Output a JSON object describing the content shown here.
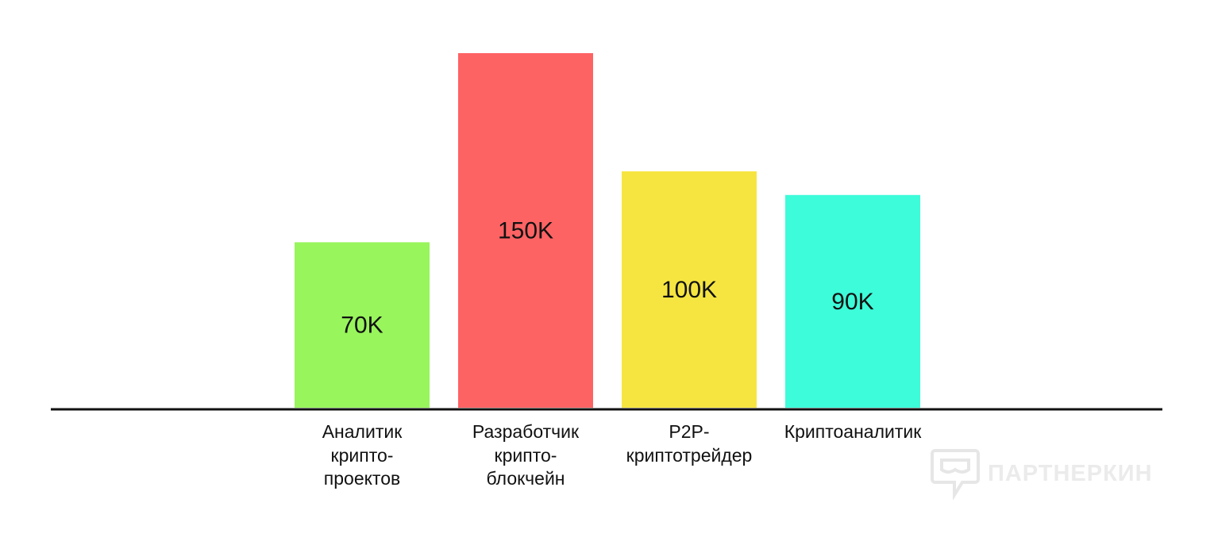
{
  "chart_data": {
    "type": "bar",
    "title": "",
    "xlabel": "",
    "ylabel": "",
    "ylim": [
      0,
      150
    ],
    "grid": false,
    "legend": "none",
    "categories": [
      "Аналитик\nкрипто-\nпроектов",
      "Разработчик\nкрипто-\nблокчейн",
      "P2P-\nкриптотрейдер",
      "Криптоаналитик"
    ],
    "values": [
      70,
      150,
      100,
      90
    ],
    "value_labels": [
      "70K",
      "150K",
      "100K",
      "90K"
    ],
    "colors": [
      "#98f55c",
      "#fe6364",
      "#f6e540",
      "#3dfcd9"
    ]
  },
  "watermark": {
    "text": "ПАРТНЕРКИН",
    "icon": "chat-mask-logo-icon"
  }
}
